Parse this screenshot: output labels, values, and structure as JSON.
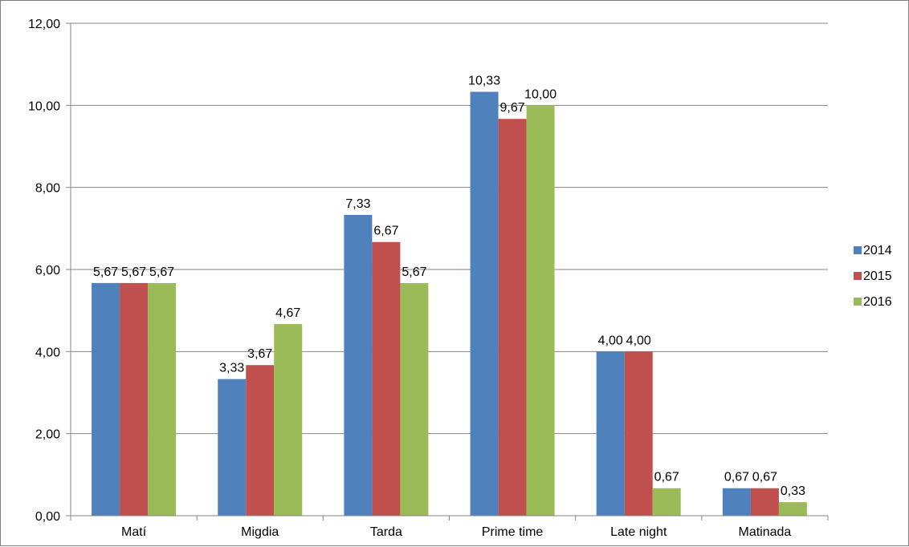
{
  "chart_data": {
    "type": "bar",
    "categories": [
      "Matí",
      "Migdia",
      "Tarda",
      "Prime time",
      "Late night",
      "Matinada"
    ],
    "series": [
      {
        "name": "2014",
        "color": "#4F81BD",
        "values": [
          5.67,
          3.33,
          7.33,
          10.33,
          4.0,
          0.67
        ],
        "labels": [
          "5,67",
          "3,33",
          "7,33",
          "10,33",
          "4,00",
          "0,67"
        ]
      },
      {
        "name": "2015",
        "color": "#C0504D",
        "values": [
          5.67,
          3.67,
          6.67,
          9.67,
          4.0,
          0.67
        ],
        "labels": [
          "5,67",
          "3,67",
          "6,67",
          "9,67",
          "4,00",
          "0,67"
        ]
      },
      {
        "name": "2016",
        "color": "#9BBB59",
        "values": [
          5.67,
          4.67,
          5.67,
          10.0,
          0.67,
          0.33
        ],
        "labels": [
          "5,67",
          "4,67",
          "5,67",
          "10,00",
          "0,67",
          "0,33"
        ]
      }
    ],
    "y_ticks": [
      0,
      2,
      4,
      6,
      8,
      10,
      12
    ],
    "y_tick_labels": [
      "0,00",
      "2,00",
      "4,00",
      "6,00",
      "8,00",
      "10,00",
      "12,00"
    ],
    "ylim": [
      0,
      12
    ],
    "title": "",
    "xlabel": "",
    "ylabel": "",
    "grid": true,
    "legend_position": "right"
  }
}
